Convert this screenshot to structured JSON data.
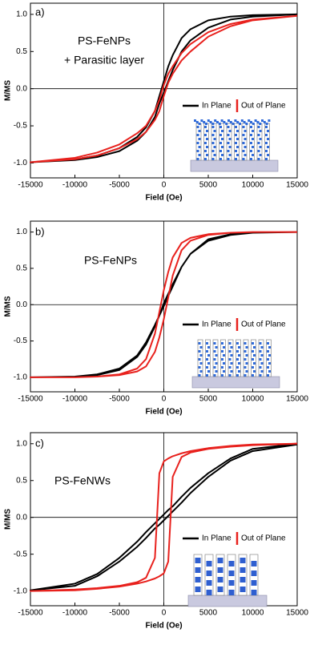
{
  "chart_data": [
    {
      "type": "line",
      "label": "a)",
      "annotations": [
        "PS-FeNPs",
        "+ Parasitic layer"
      ],
      "x_label": "Field (Oe)",
      "y_label": "M/MS",
      "x": [
        15000,
        10000,
        7500,
        5000,
        3000,
        2000,
        1000,
        500,
        0,
        -500,
        -1000,
        -2000,
        -3000,
        -5000,
        -7500,
        -10000,
        -15000,
        -10000,
        -7500,
        -5000,
        -3000,
        -2000,
        -1000,
        -500,
        0,
        500,
        1000,
        2000,
        3000,
        5000,
        7500,
        10000,
        15000
      ],
      "series": [
        {
          "name": "In Plane",
          "color": "#000000",
          "values": [
            1.0,
            0.99,
            0.97,
            0.92,
            0.8,
            0.68,
            0.45,
            0.3,
            0.1,
            -0.1,
            -0.3,
            -0.52,
            -0.65,
            -0.8,
            -0.9,
            -0.95,
            -0.99,
            -0.96,
            -0.92,
            -0.84,
            -0.7,
            -0.58,
            -0.38,
            -0.2,
            -0.05,
            0.1,
            0.25,
            0.5,
            0.65,
            0.82,
            0.93,
            0.97,
            1.0
          ]
        },
        {
          "name": "Out of Plane",
          "color": "#e8211d",
          "values": [
            0.98,
            0.93,
            0.87,
            0.76,
            0.6,
            0.48,
            0.3,
            0.2,
            0.05,
            -0.15,
            -0.3,
            -0.5,
            -0.6,
            -0.75,
            -0.86,
            -0.93,
            -0.99,
            -0.95,
            -0.9,
            -0.8,
            -0.68,
            -0.58,
            -0.42,
            -0.3,
            -0.1,
            0.08,
            0.2,
            0.38,
            0.5,
            0.7,
            0.84,
            0.92,
            0.98
          ]
        }
      ],
      "xlim": [
        -15000,
        15000
      ],
      "ylim": [
        -1.2,
        1.15
      ],
      "xticks": [
        -15000,
        -10000,
        -5000,
        0,
        5000,
        10000,
        15000
      ],
      "yticks": [
        {
          "value": 1,
          "label": "1.0"
        },
        0.5,
        {
          "value": 0,
          "label": "0.0"
        },
        -0.5,
        {
          "value": -1,
          "label": "-1.0"
        }
      ]
    },
    {
      "type": "line",
      "label": "b)",
      "annotations": [
        "PS-FeNPs"
      ],
      "x_label": "Field (Oe)",
      "y_label": "M/MS",
      "x": [
        15000,
        10000,
        7500,
        5000,
        3000,
        2000,
        1000,
        500,
        0,
        -500,
        -1000,
        -2000,
        -3000,
        -5000,
        -7500,
        -10000,
        -15000,
        -10000,
        -7500,
        -5000,
        -3000,
        -2000,
        -1000,
        -500,
        0,
        500,
        1000,
        2000,
        3000,
        5000,
        7500,
        10000,
        15000
      ],
      "series": [
        {
          "name": "In Plane",
          "color": "#000000",
          "values": [
            1.0,
            0.99,
            0.97,
            0.9,
            0.7,
            0.52,
            0.25,
            0.12,
            -0.02,
            -0.15,
            -0.28,
            -0.52,
            -0.7,
            -0.88,
            -0.96,
            -0.99,
            -1.0,
            -0.99,
            -0.97,
            -0.9,
            -0.72,
            -0.55,
            -0.3,
            -0.15,
            0.02,
            0.15,
            0.28,
            0.52,
            0.7,
            0.88,
            0.96,
            0.99,
            1.0
          ]
        },
        {
          "name": "Out of Plane",
          "color": "#e8211d",
          "values": [
            1.0,
            1.0,
            0.99,
            0.97,
            0.92,
            0.85,
            0.65,
            0.45,
            0.2,
            -0.1,
            -0.4,
            -0.75,
            -0.88,
            -0.96,
            -0.99,
            -1.0,
            -1.0,
            -1.0,
            -0.99,
            -0.97,
            -0.92,
            -0.85,
            -0.65,
            -0.45,
            -0.2,
            0.1,
            0.4,
            0.75,
            0.88,
            0.96,
            0.99,
            1.0,
            1.0
          ]
        }
      ],
      "xlim": [
        -15000,
        15000
      ],
      "ylim": [
        -1.2,
        1.15
      ],
      "xticks": [
        -15000,
        -10000,
        -5000,
        0,
        5000,
        10000,
        15000
      ],
      "yticks": [
        {
          "value": 1,
          "label": "1.0"
        },
        0.5,
        {
          "value": 0,
          "label": "0.0"
        },
        -0.5,
        {
          "value": -1,
          "label": "-1.0"
        }
      ]
    },
    {
      "type": "line",
      "label": "c)",
      "annotations": [
        "PS-FeNWs"
      ],
      "x_label": "Field (Oe)",
      "y_label": "M/MS",
      "x": [
        15000,
        10000,
        7500,
        5000,
        3000,
        2000,
        1000,
        500,
        0,
        -500,
        -1000,
        -2000,
        -3000,
        -5000,
        -7500,
        -10000,
        -15000,
        -10000,
        -7500,
        -5000,
        -3000,
        -2000,
        -1000,
        -500,
        0,
        500,
        1000,
        2000,
        3000,
        5000,
        7500,
        10000,
        15000
      ],
      "series": [
        {
          "name": "In Plane",
          "color": "#000000",
          "values": [
            1.0,
            0.93,
            0.8,
            0.6,
            0.4,
            0.28,
            0.15,
            0.1,
            0.04,
            -0.02,
            -0.08,
            -0.2,
            -0.33,
            -0.55,
            -0.77,
            -0.9,
            -0.99,
            -0.93,
            -0.8,
            -0.6,
            -0.4,
            -0.28,
            -0.15,
            -0.1,
            -0.04,
            0.02,
            0.08,
            0.2,
            0.33,
            0.55,
            0.77,
            0.9,
            0.99
          ]
        },
        {
          "name": "Out of Plane",
          "color": "#e8211d",
          "values": [
            1.0,
            0.99,
            0.97,
            0.94,
            0.9,
            0.87,
            0.83,
            0.8,
            0.76,
            0.6,
            -0.55,
            -0.82,
            -0.88,
            -0.93,
            -0.96,
            -0.98,
            -1.0,
            -0.99,
            -0.97,
            -0.94,
            -0.9,
            -0.87,
            -0.83,
            -0.8,
            -0.76,
            -0.6,
            0.55,
            0.82,
            0.88,
            0.93,
            0.96,
            0.98,
            1.0
          ]
        }
      ],
      "xlim": [
        -15000,
        15000
      ],
      "ylim": [
        -1.2,
        1.15
      ],
      "xticks": [
        -15000,
        -10000,
        -5000,
        0,
        5000,
        10000,
        15000
      ],
      "yticks": [
        {
          "value": 1,
          "label": "1.0"
        },
        0.5,
        {
          "value": 0,
          "label": "0.0"
        },
        -0.5,
        {
          "value": -1,
          "label": "-1.0"
        }
      ]
    }
  ]
}
